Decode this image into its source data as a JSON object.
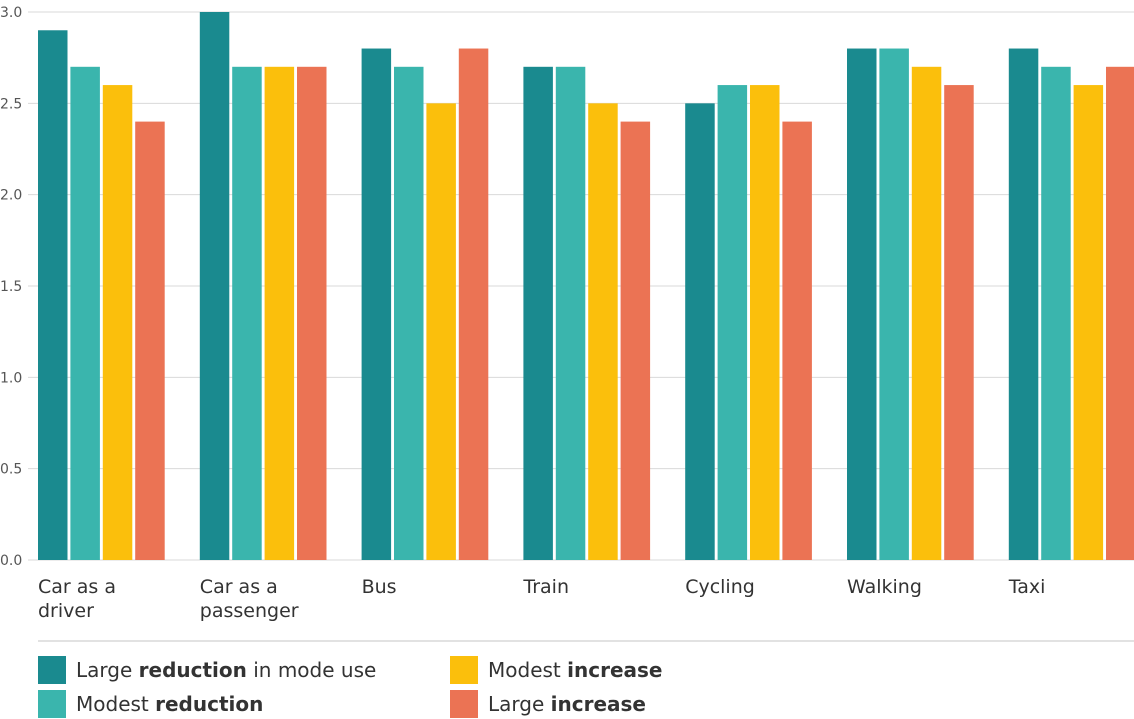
{
  "chart_data": {
    "type": "bar",
    "categories": [
      [
        "Car as a",
        "driver"
      ],
      [
        "Car as a",
        "passenger"
      ],
      [
        "Bus"
      ],
      [
        "Train"
      ],
      [
        "Cycling"
      ],
      [
        "Walking"
      ],
      [
        "Taxi"
      ]
    ],
    "series": [
      {
        "name": "Large reduction in mode use",
        "color": "#1a8a8f",
        "values": [
          2.9,
          3.0,
          2.8,
          2.7,
          2.5,
          2.8,
          2.8
        ]
      },
      {
        "name": "Modest reduction",
        "color": "#3ab5ad",
        "values": [
          2.7,
          2.7,
          2.7,
          2.7,
          2.6,
          2.8,
          2.7
        ]
      },
      {
        "name": "Modest increase",
        "color": "#fbbf0c",
        "values": [
          2.6,
          2.7,
          2.5,
          2.5,
          2.6,
          2.7,
          2.6
        ]
      },
      {
        "name": "Large increase",
        "color": "#eb7354",
        "values": [
          2.4,
          2.7,
          2.8,
          2.4,
          2.4,
          2.6,
          2.7
        ]
      }
    ],
    "yticks": [
      "0.0",
      "0.5",
      "1.0",
      "1.5",
      "2.0",
      "2.5",
      "3.0"
    ],
    "ylim": [
      0,
      3.0
    ],
    "grid": true,
    "legend_position": "bottom"
  },
  "legend": [
    {
      "pre": "Large ",
      "bold": "reduction",
      "post": " in mode use",
      "color": "#1a8a8f"
    },
    {
      "pre": "Modest ",
      "bold": "reduction",
      "post": "",
      "color": "#3ab5ad"
    },
    {
      "pre": "Modest ",
      "bold": "increase",
      "post": "",
      "color": "#fbbf0c"
    },
    {
      "pre": "Large ",
      "bold": "increase",
      "post": "",
      "color": "#eb7354"
    }
  ]
}
